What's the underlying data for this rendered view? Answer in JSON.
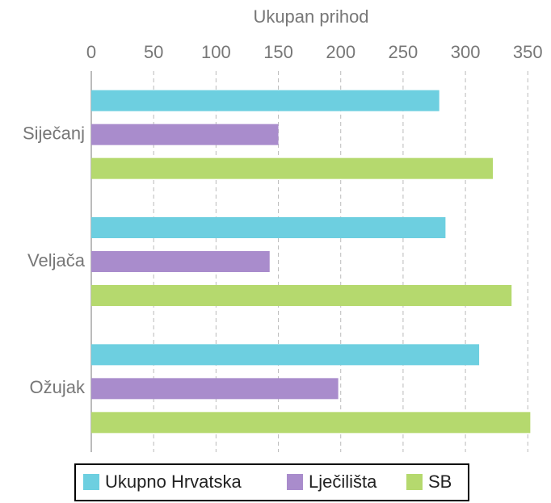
{
  "chart_data": {
    "type": "hbar",
    "title": "Ukupan prihod",
    "categories": [
      "Siječanj",
      "Veljača",
      "Ožujak"
    ],
    "series": [
      {
        "name": "Ukupno Hrvatska",
        "color": "#6dcfe0",
        "values": [
          279,
          284,
          311
        ]
      },
      {
        "name": "Lječilišta",
        "color": "#a98ccc",
        "values": [
          150,
          143,
          198
        ]
      },
      {
        "name": "SB",
        "color": "#b5d96e",
        "values": [
          322,
          337,
          352
        ]
      }
    ],
    "xlim": [
      0,
      355
    ],
    "xticks": [
      0,
      50,
      100,
      150,
      200,
      250,
      300,
      350
    ],
    "grid": true,
    "legend": "bottom"
  }
}
